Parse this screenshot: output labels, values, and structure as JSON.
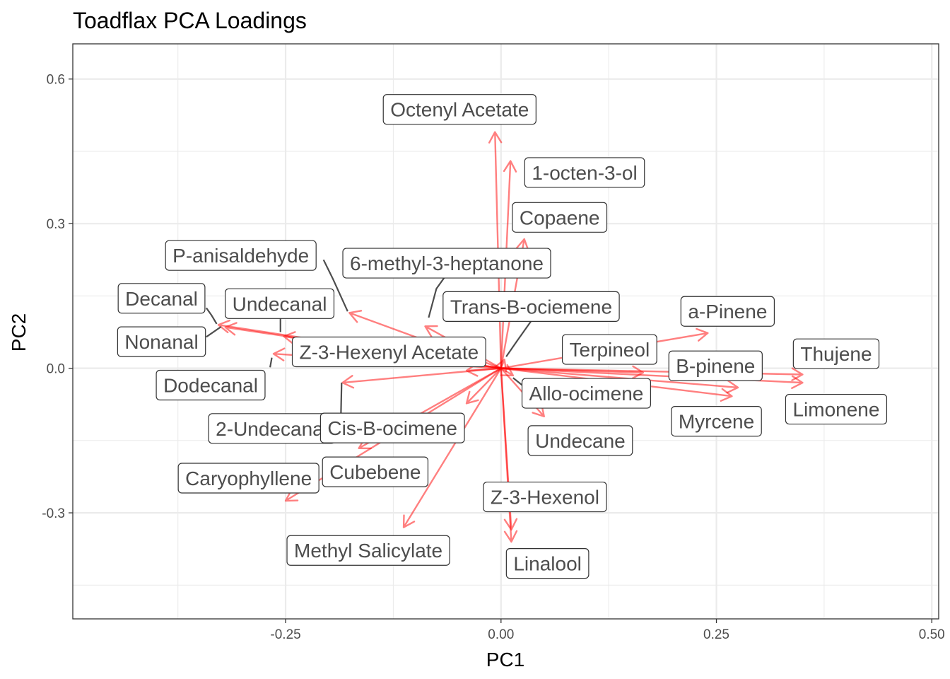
{
  "chart_data": {
    "type": "scatter",
    "subtype": "pca-loadings-biplot",
    "title": "Toadflax PCA Loadings",
    "xlabel": "PC1",
    "ylabel": "PC2",
    "xlim": [
      -0.497,
      0.508
    ],
    "ylim": [
      -0.52,
      0.673
    ],
    "xticks": [
      -0.25,
      0.0,
      0.25,
      0.5
    ],
    "yticks": [
      -0.3,
      0.0,
      0.3,
      0.6
    ],
    "xtick_labels": [
      "-0.25",
      "0.00",
      "0.25",
      "0.50"
    ],
    "ytick_labels": [
      "-0.3",
      "0.0",
      "0.3",
      "0.6"
    ],
    "grid": true,
    "theme": "bw",
    "arrow_color": "#ff0000",
    "label_text_color": "#4d4d4d",
    "series": [
      {
        "name": "",
        "points": [
          {
            "label": "Octenyl Acetate",
            "x": -0.007,
            "y": 0.49
          },
          {
            "label": "1-octen-3-ol",
            "x": 0.011,
            "y": 0.43
          },
          {
            "label": "Copaene",
            "x": 0.027,
            "y": 0.268
          },
          {
            "label": "6-methyl-3-heptanone",
            "x": -0.088,
            "y": 0.087
          },
          {
            "label": "P-anisaldehyde",
            "x": -0.176,
            "y": 0.115
          },
          {
            "label": "Trans-B-ociemene",
            "x": 0.004,
            "y": 0.018
          },
          {
            "label": "Decanal",
            "x": -0.328,
            "y": 0.09
          },
          {
            "label": "Undecanal",
            "x": -0.252,
            "y": 0.066
          },
          {
            "label": "Nonanal",
            "x": -0.32,
            "y": 0.085
          },
          {
            "label": "Dodecanal",
            "x": -0.264,
            "y": 0.03
          },
          {
            "label": "Z-3-Hexenyl Acetate",
            "x": -0.04,
            "y": -0.005
          },
          {
            "label": "2-Undecanal",
            "x": -0.184,
            "y": -0.03
          },
          {
            "label": "Cis-B-ocimene",
            "x": -0.04,
            "y": -0.073
          },
          {
            "label": "Cubebene",
            "x": -0.165,
            "y": -0.166
          },
          {
            "label": "Caryophyllene",
            "x": -0.25,
            "y": -0.275
          },
          {
            "label": "Methyl Salicylate",
            "x": -0.113,
            "y": -0.33
          },
          {
            "label": "Z-3-Hexenol",
            "x": 0.012,
            "y": -0.335
          },
          {
            "label": "Linalool",
            "x": 0.012,
            "y": -0.36
          },
          {
            "label": "Undecane",
            "x": 0.05,
            "y": -0.1
          },
          {
            "label": "Allo-ocimene",
            "x": 0.014,
            "y": -0.015
          },
          {
            "label": "a-Pinene",
            "x": 0.24,
            "y": 0.073
          },
          {
            "label": "Terpineol",
            "x": 0.165,
            "y": -0.009
          },
          {
            "label": "B-pinene",
            "x": 0.275,
            "y": -0.04
          },
          {
            "label": "Myrcene",
            "x": 0.268,
            "y": -0.058
          },
          {
            "label": "Thujene",
            "x": 0.35,
            "y": -0.013
          },
          {
            "label": "Limonene",
            "x": 0.35,
            "y": -0.03
          }
        ]
      }
    ],
    "annotations": [
      {
        "text": "Octenyl Acetate",
        "lx": -0.048,
        "ly": 0.537,
        "leader": []
      },
      {
        "text": "1-octen-3-ol",
        "lx": 0.097,
        "ly": 0.406,
        "leader": []
      },
      {
        "text": "Copaene",
        "lx": 0.068,
        "ly": 0.313,
        "leader": []
      },
      {
        "text": "6-methyl-3-heptanone",
        "lx": -0.063,
        "ly": 0.218,
        "leader": [
          [
            -0.063,
            0.195
          ],
          [
            -0.075,
            0.165
          ],
          [
            -0.084,
            0.105
          ]
        ]
      },
      {
        "text": "P-anisaldehyde",
        "lx": -0.302,
        "ly": 0.234,
        "leader": [
          [
            -0.206,
            0.225
          ],
          [
            -0.195,
            0.185
          ],
          [
            -0.178,
            0.118
          ]
        ]
      },
      {
        "text": "Trans-B-ociemene",
        "lx": 0.035,
        "ly": 0.128,
        "leader": [
          [
            0.035,
            0.098
          ],
          [
            0.018,
            0.055
          ],
          [
            0.006,
            0.024
          ]
        ]
      },
      {
        "text": "Decanal",
        "lx": -0.394,
        "ly": 0.145,
        "leader": [
          [
            -0.342,
            0.125
          ],
          [
            -0.336,
            0.11
          ],
          [
            -0.33,
            0.092
          ]
        ]
      },
      {
        "text": "Undecanal",
        "lx": -0.257,
        "ly": 0.134,
        "leader": [
          [
            -0.256,
            0.105
          ],
          [
            -0.256,
            0.075
          ]
        ]
      },
      {
        "text": "Nonanal",
        "lx": -0.394,
        "ly": 0.055,
        "leader": [
          [
            -0.342,
            0.065
          ],
          [
            -0.325,
            0.086
          ]
        ]
      },
      {
        "text": "Dodecanal",
        "lx": -0.337,
        "ly": -0.035,
        "leader": [
          [
            -0.268,
            0.002
          ],
          [
            -0.266,
            0.022
          ]
        ]
      },
      {
        "text": "Z-3-Hexenyl Acetate",
        "lx": -0.13,
        "ly": 0.034,
        "leader": []
      },
      {
        "text": "2-Undecanal",
        "lx": -0.266,
        "ly": -0.125,
        "leader": [
          [
            -0.186,
            -0.113
          ],
          [
            -0.185,
            -0.03
          ]
        ]
      },
      {
        "text": "Cis-B-ocimene",
        "lx": -0.126,
        "ly": -0.124,
        "leader": []
      },
      {
        "text": "Cubebene",
        "lx": -0.146,
        "ly": -0.215,
        "leader": []
      },
      {
        "text": "Caryophyllene",
        "lx": -0.293,
        "ly": -0.228,
        "leader": []
      },
      {
        "text": "Methyl Salicylate",
        "lx": -0.154,
        "ly": -0.378,
        "leader": []
      },
      {
        "text": "Z-3-Hexenol",
        "lx": 0.051,
        "ly": -0.267,
        "leader": []
      },
      {
        "text": "Linalool",
        "lx": 0.054,
        "ly": -0.405,
        "leader": []
      },
      {
        "text": "Undecane",
        "lx": 0.092,
        "ly": -0.15,
        "leader": []
      },
      {
        "text": "Allo-ocimene",
        "lx": 0.099,
        "ly": -0.052,
        "leader": [
          [
            0.028,
            -0.04
          ],
          [
            0.014,
            -0.02
          ]
        ]
      },
      {
        "text": "a-Pinene",
        "lx": 0.263,
        "ly": 0.118,
        "leader": []
      },
      {
        "text": "Terpineol",
        "lx": 0.126,
        "ly": 0.039,
        "leader": []
      },
      {
        "text": "B-pinene",
        "lx": 0.249,
        "ly": 0.005,
        "leader": []
      },
      {
        "text": "Myrcene",
        "lx": 0.25,
        "ly": -0.11,
        "leader": []
      },
      {
        "text": "Thujene",
        "lx": 0.389,
        "ly": 0.03,
        "leader": []
      },
      {
        "text": "Limonene",
        "lx": 0.389,
        "ly": -0.085,
        "leader": []
      }
    ]
  }
}
